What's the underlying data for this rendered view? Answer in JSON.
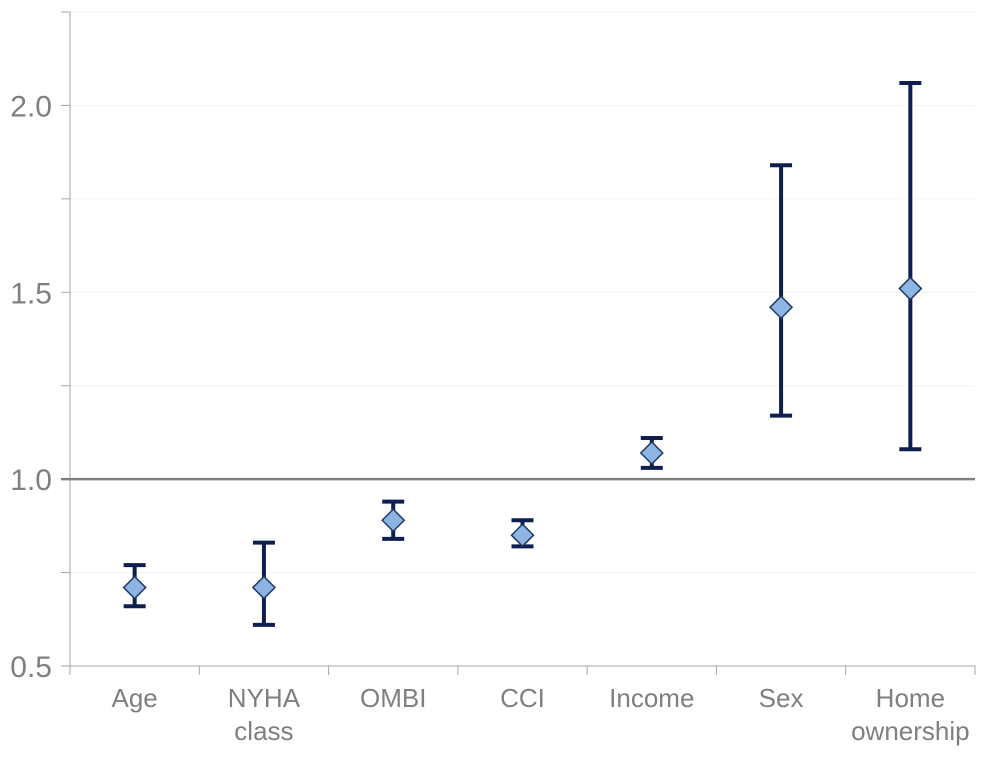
{
  "chart_data": {
    "type": "scatter",
    "title": "",
    "xlabel": "",
    "ylabel": "",
    "categories": [
      [
        "Age"
      ],
      [
        "NYHA",
        "class"
      ],
      [
        "OMBI"
      ],
      [
        "CCI"
      ],
      [
        "Income"
      ],
      [
        "Sex"
      ],
      [
        "Home",
        "ownership"
      ]
    ],
    "series": [
      {
        "points": [
          {
            "estimate": 0.71,
            "lower": 0.66,
            "upper": 0.77
          },
          {
            "estimate": 0.71,
            "lower": 0.61,
            "upper": 0.83
          },
          {
            "estimate": 0.89,
            "lower": 0.84,
            "upper": 0.94
          },
          {
            "estimate": 0.85,
            "lower": 0.82,
            "upper": 0.89
          },
          {
            "estimate": 1.07,
            "lower": 1.03,
            "upper": 1.11
          },
          {
            "estimate": 1.46,
            "lower": 1.17,
            "upper": 1.84
          },
          {
            "estimate": 1.51,
            "lower": 1.08,
            "upper": 2.06
          }
        ]
      }
    ],
    "ylim": [
      0.5,
      2.25
    ],
    "yticks": [
      0.5,
      1.0,
      1.5,
      2.0
    ],
    "yticks_minor": [
      0.75,
      1.25,
      1.75,
      2.25
    ],
    "reference_line": 1.0,
    "grid": true,
    "colors": {
      "marker_fill": "#8db4e2",
      "marker_stroke": "#1f3864",
      "errorbar": "#0f1f4d",
      "reference_line": "#7f7f7f",
      "axis": "#a6a6a6",
      "grid": "#f2f2f2",
      "tick_label": "#7f7f7f"
    }
  }
}
